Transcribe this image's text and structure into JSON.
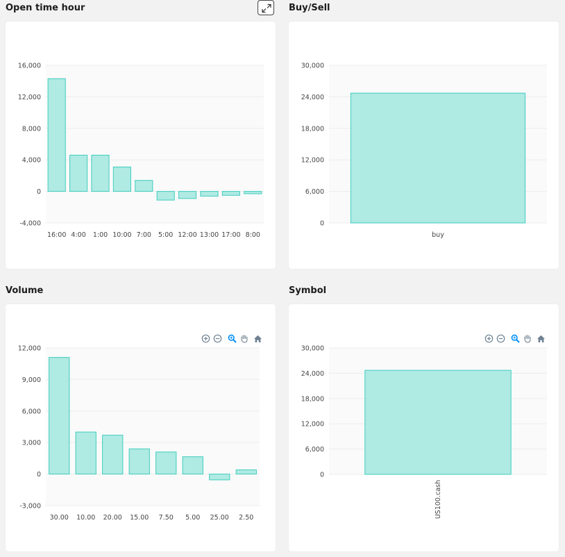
{
  "panels": [
    {
      "key": "open_time_hour",
      "title": "Open time hour",
      "has_expand": true,
      "has_toolbar": false,
      "chart_data": {
        "type": "bar",
        "categories": [
          "16:00",
          "4:00",
          "1:00",
          "10:00",
          "7:00",
          "5:00",
          "12:00",
          "13:00",
          "17:00",
          "8:00"
        ],
        "values": [
          14300,
          4600,
          4600,
          3100,
          1400,
          -1100,
          -900,
          -600,
          -500,
          -300
        ],
        "title": "",
        "xlabel": "",
        "ylabel": "",
        "ylim": [
          -4000,
          16000
        ],
        "yticks": [
          -4000,
          0,
          4000,
          8000,
          12000,
          16000
        ],
        "ytick_labels": [
          "-4,000",
          "0",
          "4,000",
          "8,000",
          "12,000",
          "16,000"
        ],
        "grid": true,
        "rotate_x_labels": false,
        "bar_color": "#afeae3",
        "bar_stroke": "#3fcdbd"
      }
    },
    {
      "key": "buy_sell",
      "title": "Buy/Sell",
      "has_expand": false,
      "has_toolbar": false,
      "chart_data": {
        "type": "bar",
        "categories": [
          "buy"
        ],
        "values": [
          24700
        ],
        "title": "",
        "xlabel": "",
        "ylabel": "",
        "ylim": [
          0,
          30000
        ],
        "yticks": [
          0,
          6000,
          12000,
          18000,
          24000,
          30000
        ],
        "ytick_labels": [
          "0",
          "6,000",
          "12,000",
          "18,000",
          "24,000",
          "30,000"
        ],
        "grid": true,
        "rotate_x_labels": false,
        "bar_color": "#afeae3",
        "bar_stroke": "#3fcdbd"
      }
    },
    {
      "key": "volume",
      "title": "Volume",
      "has_expand": false,
      "has_toolbar": true,
      "chart_data": {
        "type": "bar",
        "categories": [
          "30.00",
          "10.00",
          "20.00",
          "15.00",
          "7.50",
          "5.00",
          "25.00",
          "2.50"
        ],
        "values": [
          11100,
          4000,
          3700,
          2400,
          2100,
          1650,
          -550,
          400
        ],
        "title": "",
        "xlabel": "",
        "ylabel": "",
        "ylim": [
          -3000,
          12000
        ],
        "yticks": [
          -3000,
          0,
          3000,
          6000,
          9000,
          12000
        ],
        "ytick_labels": [
          "-3,000",
          "0",
          "3,000",
          "6,000",
          "9,000",
          "12,000"
        ],
        "grid": true,
        "rotate_x_labels": false,
        "bar_color": "#afeae3",
        "bar_stroke": "#3fcdbd"
      }
    },
    {
      "key": "symbol",
      "title": "Symbol",
      "has_expand": false,
      "has_toolbar": true,
      "chart_data": {
        "type": "bar",
        "categories": [
          "US100.cash"
        ],
        "values": [
          24700
        ],
        "title": "",
        "xlabel": "",
        "ylabel": "",
        "ylim": [
          0,
          30000
        ],
        "yticks": [
          0,
          6000,
          12000,
          18000,
          24000,
          30000
        ],
        "ytick_labels": [
          "0",
          "6,000",
          "12,000",
          "18,000",
          "24,000",
          "30,000"
        ],
        "grid": true,
        "rotate_x_labels": true,
        "bar_color": "#afeae3",
        "bar_stroke": "#3fcdbd"
      }
    }
  ],
  "toolbar_icons": [
    "zoom-in-icon",
    "zoom-out-icon",
    "zoom-select-icon",
    "pan-hand-icon",
    "reset-home-icon"
  ],
  "expand_icon": "expand-arrows-icon"
}
